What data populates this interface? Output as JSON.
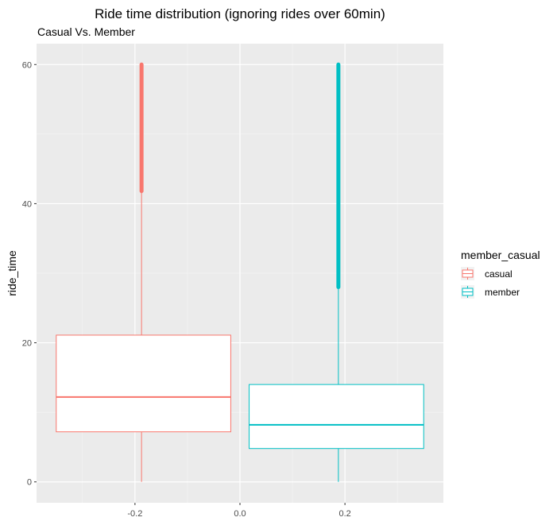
{
  "chart_data": {
    "type": "boxplot",
    "title": "Ride time distribution (ignoring rides over 60min)",
    "subtitle": "Casual Vs. Member",
    "xlabel": "",
    "ylabel": "ride_time",
    "xlim": [
      -0.3875,
      0.3875
    ],
    "ylim": [
      -3,
      63
    ],
    "x_ticks": [
      -0.2,
      0.0,
      0.2
    ],
    "x_tick_labels": [
      "-0.2",
      "0.0",
      "0.2"
    ],
    "y_ticks": [
      0,
      20,
      40,
      60
    ],
    "y_tick_labels": [
      "0",
      "20",
      "40",
      "60"
    ],
    "grid": true,
    "legend": {
      "title": "member_casual",
      "position": "right"
    },
    "series": [
      {
        "name": "casual",
        "color": "#F8766D",
        "x_center": -0.1875,
        "box_x_range": [
          -0.35,
          -0.0175
        ],
        "min": 0,
        "q1": 7.2,
        "median": 12.2,
        "q3": 21.1,
        "whisker_high": 41.8,
        "outliers_range": [
          41.8,
          60
        ]
      },
      {
        "name": "member",
        "color": "#00BFC4",
        "x_center": 0.1875,
        "box_x_range": [
          0.0175,
          0.35
        ],
        "min": 0,
        "q1": 4.8,
        "median": 8.2,
        "q3": 14.0,
        "whisker_high": 28.0,
        "outliers_range": [
          28.0,
          60
        ]
      }
    ]
  }
}
